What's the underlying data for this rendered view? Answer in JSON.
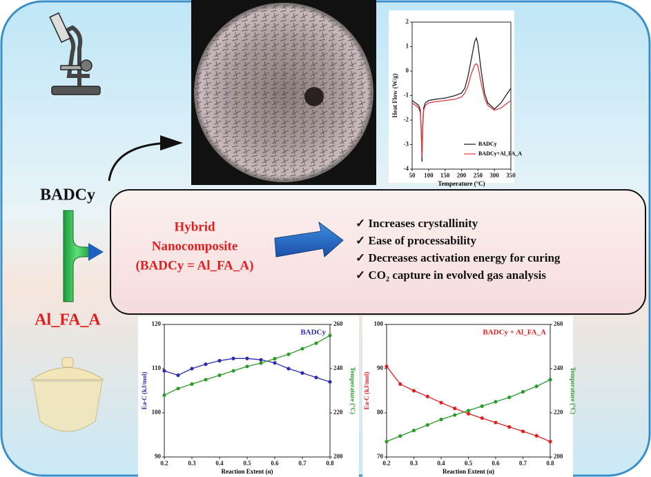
{
  "labels": {
    "left_top": "BADCy",
    "left_bottom": "Al_FA_A"
  },
  "center": {
    "title_lines": [
      "Hybrid",
      "Nanocomposite",
      "(BADCy = Al_FA_A)"
    ]
  },
  "benefits": [
    "✓  Increases crystallinity",
    "✓  Ease of  processability",
    "✓  Decreases activation energy for curing",
    "✓  CO₂ capture in evolved gas analysis"
  ],
  "chart_data": [
    {
      "type": "line",
      "xlabel": "Temperature (°C)",
      "ylabel": "Heat Flow (W/g)",
      "x": [
        50,
        60,
        70,
        75,
        78,
        80,
        82,
        85,
        90,
        100,
        120,
        150,
        180,
        200,
        210,
        220,
        230,
        240,
        245,
        250,
        260,
        270,
        280,
        300,
        320,
        340,
        350
      ],
      "series": [
        {
          "name": "BADCy",
          "color": "#222222",
          "values": [
            -1.2,
            -1.3,
            -1.4,
            -1.6,
            -2.5,
            -3.7,
            -2.2,
            -1.5,
            -1.3,
            -1.2,
            -1.15,
            -1.1,
            -1.0,
            -0.9,
            -0.7,
            -0.2,
            0.5,
            1.2,
            1.35,
            1.1,
            0,
            -0.9,
            -1.3,
            -1.55,
            -1.3,
            -0.9,
            -0.7
          ]
        },
        {
          "name": "BADCy+Al_FA_A",
          "color": "#e23a3a",
          "values": [
            -1.3,
            -1.4,
            -1.5,
            -1.7,
            -2.6,
            -3.5,
            -2.3,
            -1.6,
            -1.4,
            -1.3,
            -1.25,
            -1.2,
            -1.15,
            -1.05,
            -0.9,
            -0.6,
            -0.1,
            0.25,
            0.3,
            0.2,
            -0.5,
            -1.1,
            -1.4,
            -1.6,
            -1.5,
            -1.3,
            -1.2
          ]
        }
      ],
      "xlim": [
        50,
        350
      ],
      "xticks": [
        50,
        100,
        150,
        200,
        250,
        300,
        350
      ],
      "ylim": [
        -4,
        2
      ],
      "yticks": [
        -4,
        -3,
        -2,
        -1,
        0,
        1,
        2
      ],
      "legend": "lower-right"
    },
    {
      "type": "line",
      "annotation": "BADCy",
      "annotation_color": "#2b2bb0",
      "xlabel": "Reaction Extent (α)",
      "ylabel": "Ea-C (kJ/mol)",
      "y2label": "Temperature (°C)",
      "x": [
        0.2,
        0.25,
        0.3,
        0.35,
        0.4,
        0.45,
        0.5,
        0.55,
        0.6,
        0.65,
        0.7,
        0.75,
        0.8
      ],
      "series": [
        {
          "color": "#2b2bb0",
          "values": [
            109.5,
            108.5,
            110,
            111,
            111.8,
            112.3,
            112.3,
            112,
            111.3,
            110,
            109,
            108,
            107
          ]
        },
        {
          "color": "#2a9a2a",
          "axis": "y2",
          "values": [
            228,
            231,
            233,
            235,
            237,
            239,
            241,
            242.5,
            244.5,
            246.5,
            249,
            251.5,
            255
          ]
        }
      ],
      "xlim": [
        0.2,
        0.8
      ],
      "xticks": [
        0.2,
        0.3,
        0.4,
        0.5,
        0.6,
        0.7,
        0.8
      ],
      "ylim": [
        90,
        120
      ],
      "yticks": [
        90,
        100,
        110,
        120
      ],
      "y2lim": [
        200,
        260
      ],
      "y2ticks": [
        200,
        220,
        240,
        260
      ]
    },
    {
      "type": "line",
      "annotation": "BADCy + Al_FA_A",
      "annotation_color": "#e02020",
      "xlabel": "Reaction Extent (α)",
      "ylabel": "Ea-C (kJ/mol)",
      "y2label": "Temperature (°C)",
      "x": [
        0.2,
        0.25,
        0.3,
        0.35,
        0.4,
        0.45,
        0.5,
        0.55,
        0.6,
        0.65,
        0.7,
        0.75,
        0.8
      ],
      "series": [
        {
          "color": "#e02020",
          "values": [
            90.5,
            86.5,
            85,
            83.7,
            82.3,
            81,
            79.8,
            78.8,
            77.8,
            76.8,
            75.8,
            74.8,
            73.5
          ]
        },
        {
          "color": "#2a9a2a",
          "axis": "y2",
          "values": [
            207,
            209.5,
            212,
            214.5,
            217,
            219,
            221,
            223,
            225,
            227,
            229.5,
            232,
            235
          ]
        }
      ],
      "xlim": [
        0.2,
        0.8
      ],
      "xticks": [
        0.2,
        0.3,
        0.4,
        0.5,
        0.6,
        0.7,
        0.8
      ],
      "ylim": [
        70,
        100
      ],
      "yticks": [
        70,
        80,
        90,
        100
      ],
      "y2lim": [
        200,
        260
      ],
      "y2ticks": [
        200,
        220,
        240,
        260
      ]
    }
  ]
}
